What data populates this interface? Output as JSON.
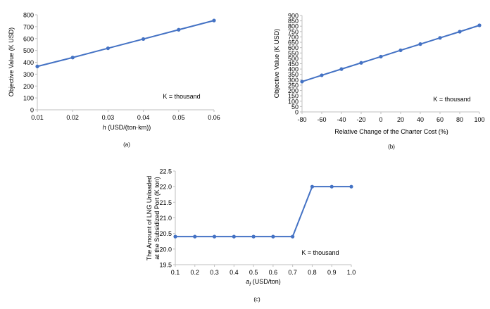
{
  "colors": {
    "series": "#4472C4",
    "axis": "#bfbfbf",
    "text": "#000000"
  },
  "chart_data": [
    {
      "id": "a",
      "type": "line",
      "caption": "(a)",
      "xlabel_italic": "h",
      "xlabel": " (USD/(ton·km))",
      "ylabel": "Objective Value (K USD)",
      "annotation": "K = thousand",
      "xlim": [
        0.01,
        0.06
      ],
      "ylim": [
        0,
        800
      ],
      "xticks": [
        "0.01",
        "0.02",
        "0.03",
        "0.04",
        "0.05",
        "0.06"
      ],
      "yticks": [
        "0",
        "100",
        "200",
        "300",
        "400",
        "500",
        "600",
        "700",
        "800"
      ],
      "series": [
        {
          "x": [
            0.01,
            0.02,
            0.03,
            0.04,
            0.05,
            0.06
          ],
          "y": [
            365,
            440,
            518,
            596,
            674,
            752
          ]
        }
      ],
      "grid": false,
      "legend": "none"
    },
    {
      "id": "b",
      "type": "line",
      "caption": "(b)",
      "xlabel": "Relative Change of the Charter Cost (%)",
      "ylabel": "Objective Value (K USD)",
      "annotation": "K = thousand",
      "xlim": [
        -80,
        100
      ],
      "ylim": [
        0,
        900
      ],
      "xticks": [
        "-80",
        "-60",
        "-40",
        "-20",
        "0",
        "20",
        "40",
        "60",
        "80",
        "100"
      ],
      "yticks": [
        "0",
        "50",
        "100",
        "150",
        "200",
        "250",
        "300",
        "350",
        "400",
        "450",
        "500",
        "550",
        "600",
        "650",
        "700",
        "750",
        "800",
        "850",
        "900"
      ],
      "series": [
        {
          "x": [
            -80,
            -60,
            -40,
            -20,
            0,
            20,
            40,
            60,
            80,
            100
          ],
          "y": [
            283,
            342,
            400,
            458,
            516,
            575,
            633,
            691,
            749,
            808
          ]
        }
      ],
      "grid": false,
      "legend": "none"
    },
    {
      "id": "c",
      "type": "line",
      "caption": "(c)",
      "xlabel_italic": "a",
      "xlabel_sub": "f",
      "xlabel": " (USD/ton)",
      "ylabel_lines": [
        "The Amount of LNG Unloaded",
        "at the Subsidized Port (K ton)"
      ],
      "annotation": "K = thousand",
      "xlim": [
        0.1,
        1.0
      ],
      "ylim": [
        19.5,
        22.5
      ],
      "xticks": [
        "0.1",
        "0.2",
        "0.3",
        "0.4",
        "0.5",
        "0.6",
        "0.7",
        "0.8",
        "0.9",
        "1.0"
      ],
      "yticks": [
        "19.5",
        "20.0",
        "20.5",
        "21.0",
        "21.5",
        "22.0",
        "22.5"
      ],
      "series": [
        {
          "x": [
            0.1,
            0.2,
            0.3,
            0.4,
            0.5,
            0.6,
            0.7,
            0.8,
            0.9,
            1.0
          ],
          "y": [
            20.4,
            20.4,
            20.4,
            20.4,
            20.4,
            20.4,
            20.4,
            22.0,
            22.0,
            22.0
          ]
        }
      ],
      "grid": false,
      "legend": "none"
    }
  ]
}
